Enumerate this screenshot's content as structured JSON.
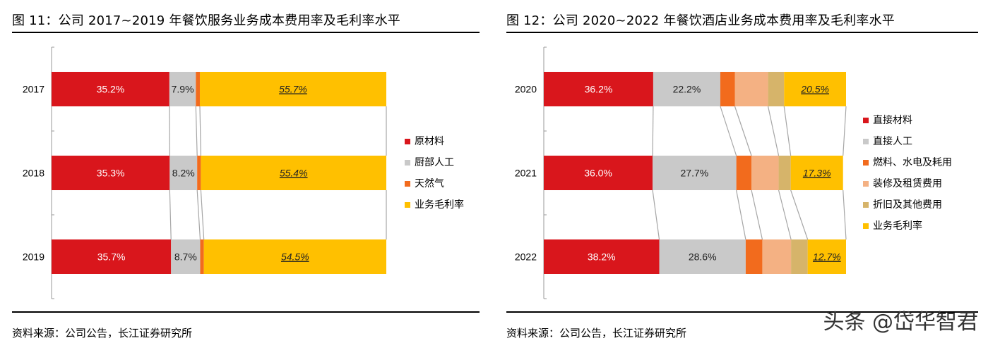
{
  "left": {
    "title": "图  11：公司 2017~2019 年餐饮服务业务成本费用率及毛利率水平",
    "source": "资料来源：公司公告，长江证券研究所"
  },
  "right": {
    "title": "图  12：公司 2020~2022 年餐饮酒店业务成本费用率及毛利率水平",
    "source": "资料来源：公司公告，长江证券研究所"
  },
  "watermark": "头条 @岱华智君",
  "chart_data": [
    {
      "type": "bar",
      "stacked": true,
      "orientation": "horizontal",
      "categories": [
        "2017",
        "2018",
        "2019"
      ],
      "series": [
        {
          "name": "原材料",
          "color": "#D9161C",
          "values": [
            35.2,
            35.3,
            35.7
          ],
          "labels": [
            "35.2%",
            "35.3%",
            "35.7%"
          ]
        },
        {
          "name": "厨部人工",
          "color": "#C9C9C9",
          "values": [
            7.9,
            8.2,
            8.7
          ],
          "labels": [
            "7.9%",
            "8.2%",
            "8.7%"
          ]
        },
        {
          "name": "天然气",
          "color": "#F26B1D",
          "values": [
            1.2,
            1.1,
            1.1
          ],
          "labels": [
            "",
            "",
            ""
          ]
        },
        {
          "name": "业务毛利率",
          "color": "#FFC000",
          "values": [
            55.7,
            55.4,
            54.5
          ],
          "labels": [
            "55.7%",
            "55.4%",
            "54.5%"
          ]
        }
      ],
      "xlim": [
        0,
        100
      ],
      "legend": "right",
      "grid": false
    },
    {
      "type": "bar",
      "stacked": true,
      "orientation": "horizontal",
      "categories": [
        "2020",
        "2021",
        "2022"
      ],
      "series": [
        {
          "name": "直接材料",
          "color": "#D9161C",
          "values": [
            36.2,
            36.0,
            38.2
          ],
          "labels": [
            "36.2%",
            "36.0%",
            "38.2%"
          ]
        },
        {
          "name": "直接人工",
          "color": "#C9C9C9",
          "values": [
            22.2,
            27.7,
            28.6
          ],
          "labels": [
            "22.2%",
            "27.7%",
            "28.6%"
          ]
        },
        {
          "name": "燃料、水电及耗用",
          "color": "#F26B1D",
          "values": [
            4.8,
            5.0,
            5.5
          ],
          "labels": [
            "",
            "",
            ""
          ]
        },
        {
          "name": "装修及租赁费用",
          "color": "#F4B183",
          "values": [
            11.0,
            9.0,
            9.5
          ],
          "labels": [
            "",
            "",
            ""
          ]
        },
        {
          "name": "折旧及其他费用",
          "color": "#D6B46A",
          "values": [
            5.3,
            4.0,
            5.5
          ],
          "labels": [
            "",
            "",
            ""
          ]
        },
        {
          "name": "业务毛利率",
          "color": "#FFC000",
          "values": [
            20.5,
            17.3,
            12.7
          ],
          "labels": [
            "20.5%",
            "17.3%",
            "12.7%"
          ]
        }
      ],
      "xlim": [
        0,
        100
      ],
      "legend": "right",
      "grid": false
    }
  ]
}
